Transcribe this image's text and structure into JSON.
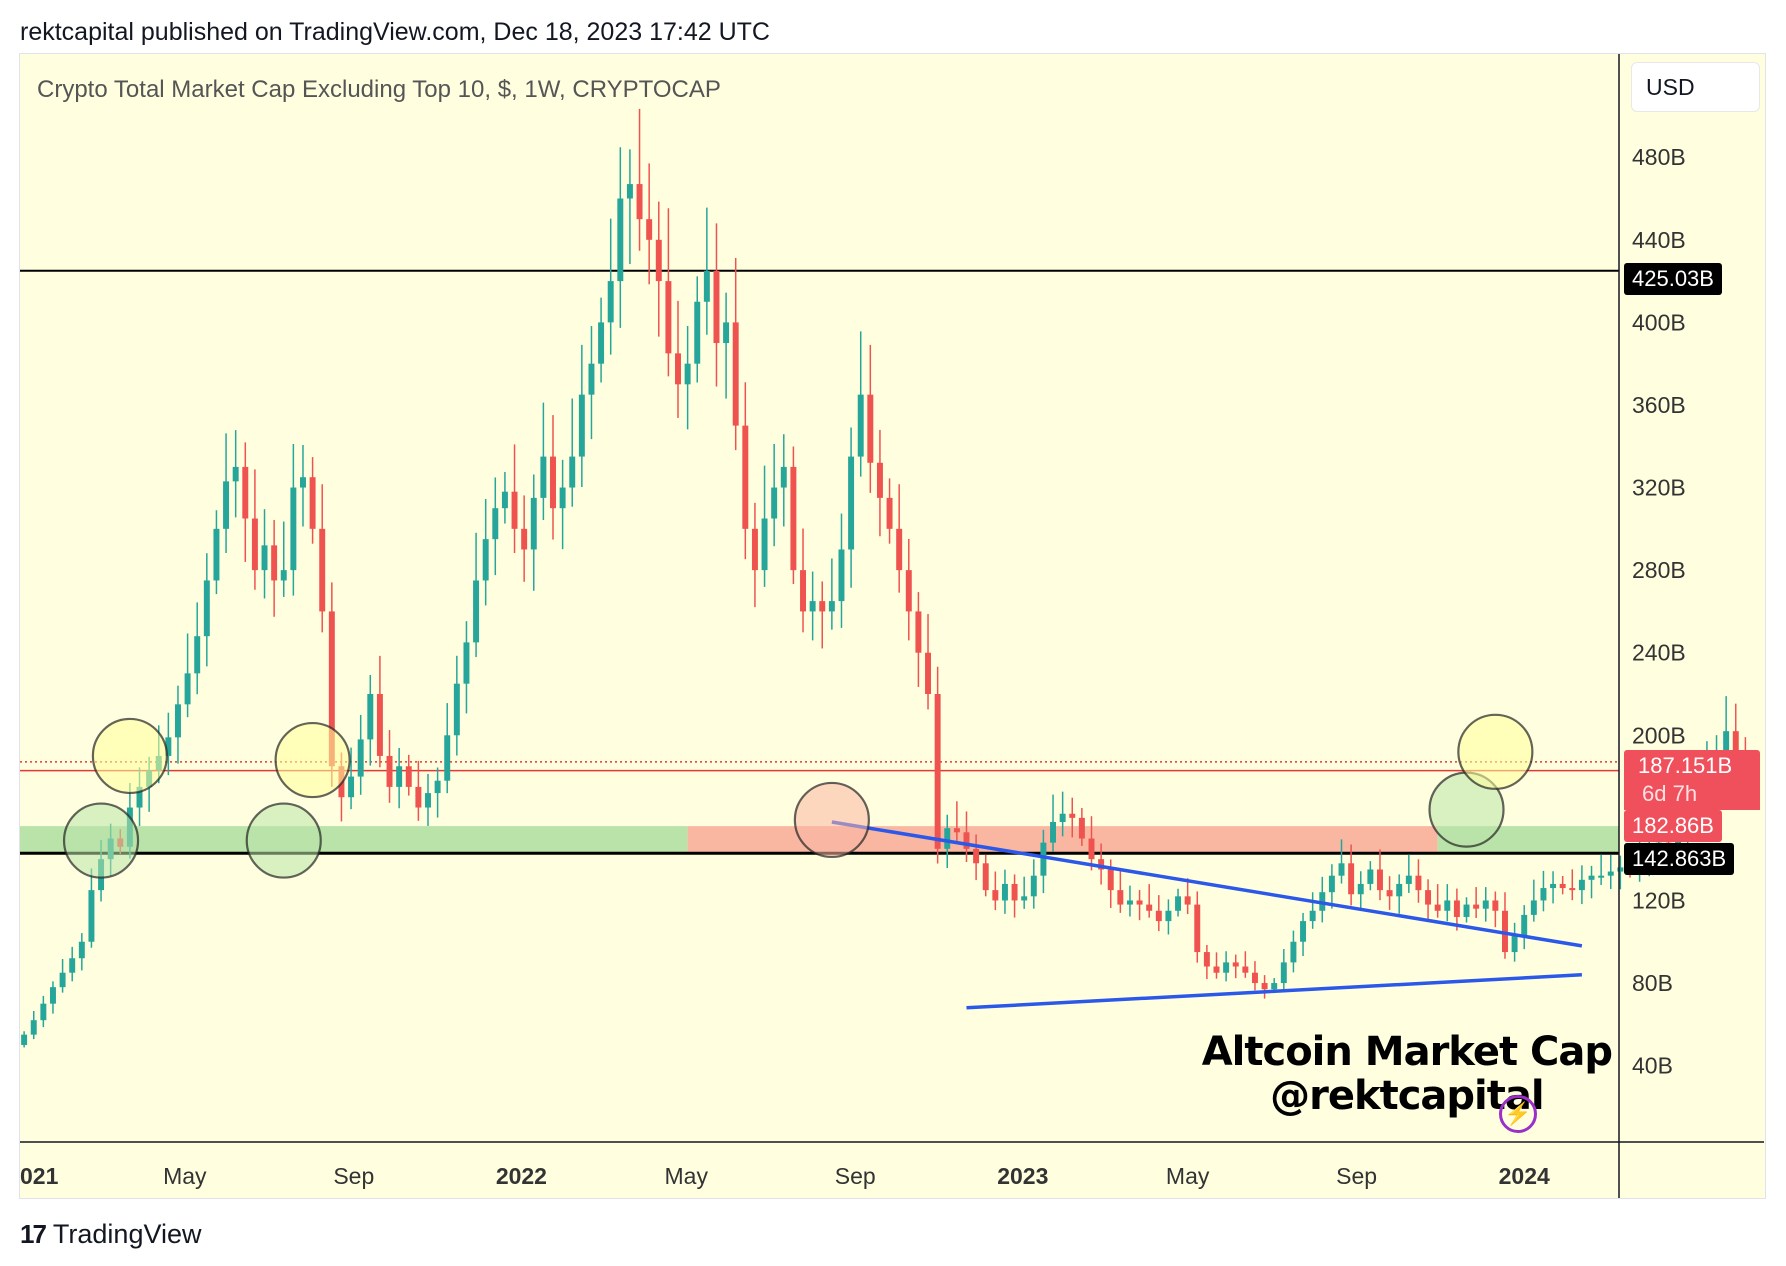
{
  "header": {
    "published_line": "rektcapital published on TradingView.com, Dec 18, 2023 17:42 UTC"
  },
  "footer": {
    "brand_logo": "17",
    "brand_name": "TradingView"
  },
  "toolbar": {
    "currency_button": "USD"
  },
  "price_tags": {
    "resistance": "425.03B",
    "last": "187.151B",
    "countdown": "6d 7h",
    "prev_close": "182.86B",
    "support": "142.863B"
  },
  "watermark": {
    "line1": "Altcoin Market Cap",
    "line2": "@rektcapital",
    "icon": "lightning-icon"
  },
  "colors": {
    "background": "#ffffe0",
    "up": "#26a69a",
    "down": "#ef5350",
    "support_zone": "#b9e3a8",
    "resistance_zone": "#f9b7a2",
    "trendline": "#2b58e8",
    "price_line": "#e53935"
  },
  "chart_data": {
    "type": "candlestick",
    "title": "Crypto Total Market Cap Excluding Top 10, $, 1W, CRYPTOCAP",
    "y_unit": "B",
    "ylim": [
      3,
      530
    ],
    "y_ticks": [
      {
        "label": "480B",
        "value": 480
      },
      {
        "label": "440B",
        "value": 440
      },
      {
        "label": "400B",
        "value": 400
      },
      {
        "label": "360B",
        "value": 360
      },
      {
        "label": "320B",
        "value": 320
      },
      {
        "label": "280B",
        "value": 280
      },
      {
        "label": "240B",
        "value": 240
      },
      {
        "label": "200B",
        "value": 200
      },
      {
        "label": "120B",
        "value": 120
      },
      {
        "label": "80B",
        "value": 80
      },
      {
        "label": "40B",
        "value": 40
      }
    ],
    "xlim": [
      "2021-01-01",
      "2024-03-10"
    ],
    "x_ticks": [
      {
        "label": "021",
        "date": "2021-01-01",
        "bold": true
      },
      {
        "label": "May",
        "date": "2021-05-01",
        "bold": false
      },
      {
        "label": "Sep",
        "date": "2021-09-01",
        "bold": false
      },
      {
        "label": "2022",
        "date": "2022-01-01",
        "bold": true
      },
      {
        "label": "May",
        "date": "2022-05-01",
        "bold": false
      },
      {
        "label": "Sep",
        "date": "2022-09-01",
        "bold": false
      },
      {
        "label": "2023",
        "date": "2023-01-01",
        "bold": true
      },
      {
        "label": "May",
        "date": "2023-05-01",
        "bold": false
      },
      {
        "label": "Sep",
        "date": "2023-09-01",
        "bold": false
      },
      {
        "label": "2024",
        "date": "2024-01-01",
        "bold": true
      }
    ],
    "first_candle_date": "2021-01-04",
    "candle_interval_days": 7,
    "candles_close": [
      55,
      62,
      70,
      78,
      85,
      92,
      100,
      125,
      140,
      150,
      146,
      165,
      175,
      183,
      190,
      199,
      215,
      230,
      248,
      275,
      300,
      323,
      330,
      305,
      280,
      292,
      275,
      280,
      320,
      325,
      300,
      260,
      185,
      170,
      180,
      198,
      220,
      190,
      175,
      185,
      175,
      165,
      172,
      178,
      200,
      225,
      245,
      275,
      295,
      310,
      318,
      300,
      290,
      315,
      335,
      310,
      320,
      335,
      365,
      380,
      400,
      420,
      460,
      467,
      450,
      440,
      420,
      385,
      370,
      380,
      410,
      425,
      390,
      400,
      350,
      300,
      280,
      305,
      320,
      330,
      280,
      260,
      265,
      260,
      265,
      290,
      335,
      365,
      332,
      315,
      300,
      280,
      260,
      240,
      220,
      145,
      155,
      153,
      145,
      138,
      125,
      120,
      128,
      120,
      122,
      132,
      148,
      158,
      162,
      160,
      150,
      140,
      135,
      125,
      118,
      120,
      118,
      115,
      110,
      115,
      122,
      118,
      95,
      88,
      85,
      90,
      88,
      85,
      80,
      77,
      80,
      90,
      100,
      110,
      115,
      124,
      132,
      138,
      123,
      128,
      135,
      125,
      122,
      128,
      132,
      125,
      118,
      115,
      120,
      112,
      118,
      116,
      120,
      115,
      95,
      103,
      113,
      120,
      126,
      128,
      126,
      125,
      130,
      132,
      132,
      134,
      136,
      135,
      140,
      145,
      148,
      145,
      156,
      165,
      178,
      186,
      192,
      202,
      190,
      187
    ],
    "candles_open": [
      50,
      55,
      62,
      70,
      78,
      85,
      92,
      100,
      125,
      140,
      150,
      146,
      165,
      175,
      183,
      190,
      199,
      215,
      230,
      248,
      275,
      300,
      323,
      330,
      305,
      280,
      292,
      275,
      280,
      320,
      325,
      300,
      260,
      185,
      170,
      180,
      198,
      220,
      190,
      175,
      185,
      175,
      165,
      172,
      178,
      200,
      225,
      245,
      275,
      295,
      310,
      318,
      300,
      290,
      315,
      335,
      310,
      320,
      335,
      365,
      380,
      400,
      420,
      460,
      467,
      450,
      440,
      420,
      385,
      370,
      380,
      410,
      425,
      390,
      400,
      350,
      300,
      280,
      305,
      320,
      330,
      280,
      260,
      265,
      260,
      265,
      290,
      335,
      365,
      332,
      315,
      300,
      280,
      260,
      240,
      220,
      145,
      155,
      153,
      145,
      138,
      125,
      120,
      128,
      120,
      122,
      132,
      148,
      158,
      162,
      160,
      150,
      140,
      135,
      125,
      118,
      120,
      118,
      115,
      110,
      115,
      122,
      118,
      95,
      88,
      85,
      90,
      88,
      85,
      80,
      77,
      80,
      90,
      100,
      110,
      115,
      124,
      132,
      138,
      123,
      128,
      135,
      125,
      122,
      128,
      132,
      125,
      118,
      115,
      120,
      112,
      118,
      116,
      120,
      115,
      95,
      103,
      113,
      120,
      126,
      128,
      126,
      125,
      130,
      132,
      132,
      134,
      136,
      135,
      140,
      145,
      148,
      145,
      156,
      165,
      178,
      186,
      192,
      202,
      190
    ],
    "range_pct": 0.06,
    "annotations": {
      "hlines": [
        {
          "value": 425.03,
          "label": "425.03B",
          "color": "#000000"
        },
        {
          "value": 142.863,
          "label": "142.863B",
          "color": "#000000"
        },
        {
          "value": 182.86,
          "label": "182.86B",
          "color": "#e53935"
        },
        {
          "value": 187.151,
          "label": "187.151B",
          "color": "#e53935",
          "dotted": true
        }
      ],
      "zones": [
        {
          "from": "2021-01-01",
          "to": "2022-05-02",
          "low": 143,
          "high": 156,
          "color": "#b9e3a8"
        },
        {
          "from": "2022-05-02",
          "to": "2023-10-30",
          "low": 143,
          "high": 156,
          "color": "#f9b7a2"
        },
        {
          "from": "2023-10-30",
          "to": "2024-03-10",
          "low": 143,
          "high": 156,
          "color": "#b9e3a8"
        }
      ],
      "trendlines": [
        {
          "from": [
            "2022-08-15",
            158
          ],
          "to": [
            "2024-02-12",
            98
          ],
          "color": "#2b58e8"
        },
        {
          "from": [
            "2022-11-21",
            68
          ],
          "to": [
            "2024-02-12",
            84
          ],
          "color": "#2b58e8"
        }
      ],
      "circles": [
        {
          "date": "2021-03-01",
          "value": 149,
          "fill": "#b9e3a8"
        },
        {
          "date": "2021-03-22",
          "value": 190,
          "fill": "#ffff9a"
        },
        {
          "date": "2021-07-12",
          "value": 149,
          "fill": "#b9e3a8"
        },
        {
          "date": "2021-08-02",
          "value": 188,
          "fill": "#ffff9a"
        },
        {
          "date": "2022-08-15",
          "value": 159,
          "fill": "#f9b7a2"
        },
        {
          "date": "2023-11-20",
          "value": 164,
          "fill": "#b9e3a8"
        },
        {
          "date": "2023-12-11",
          "value": 192,
          "fill": "#ffff9a"
        }
      ]
    }
  }
}
